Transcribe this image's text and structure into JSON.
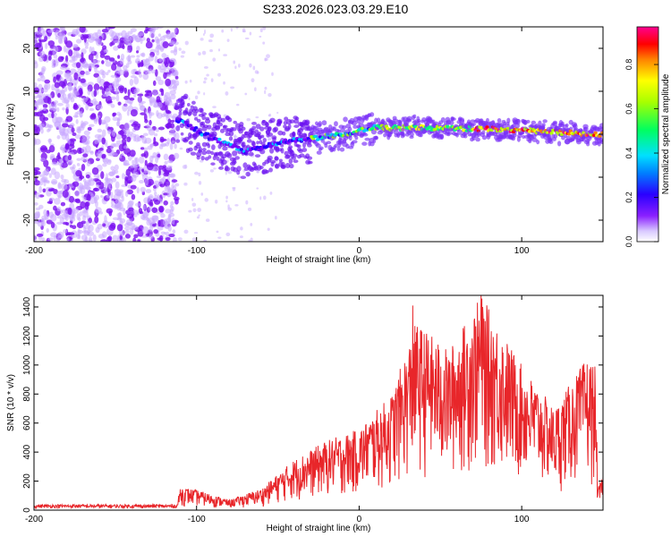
{
  "title": "S233.2026.023.03.29.E10",
  "chart_data": [
    {
      "type": "heatmap",
      "xlabel": "Height of straight line (km)",
      "ylabel": "Frequency (Hz)",
      "xlim": [
        -200,
        150
      ],
      "ylim": [
        -25,
        25
      ],
      "x_ticks": [
        -200,
        -100,
        0,
        100
      ],
      "y_ticks": [
        20,
        10,
        0,
        -10,
        -20
      ],
      "colorbar": {
        "label": "Normalized spectral amplitude",
        "ticks": [
          0.0,
          0.2,
          0.4,
          0.6,
          0.8
        ],
        "range": [
          0,
          0.97
        ],
        "colors": [
          "#ffffff",
          "#c8b0ff",
          "#7a00ff",
          "#2000ff",
          "#00c8ff",
          "#00ff80",
          "#b0ff00",
          "#ffff00",
          "#ff8000",
          "#ff0000",
          "#ff0080"
        ]
      },
      "ridge": [
        {
          "x": -110,
          "y": 3
        },
        {
          "x": -90,
          "y": -1
        },
        {
          "x": -70,
          "y": -4
        },
        {
          "x": -50,
          "y": -2
        },
        {
          "x": -30,
          "y": -1
        },
        {
          "x": -10,
          "y": 0
        },
        {
          "x": 10,
          "y": 1.5
        },
        {
          "x": 50,
          "y": 1.5
        },
        {
          "x": 100,
          "y": 1
        },
        {
          "x": 140,
          "y": 0
        }
      ]
    },
    {
      "type": "line",
      "xlabel": "Height of straight line (km)",
      "ylabel": "SNR (10 * v/v)",
      "xlim": [
        -200,
        150
      ],
      "ylim": [
        0,
        1480
      ],
      "x_ticks": [
        -200,
        -100,
        0,
        100
      ],
      "y_ticks": [
        0,
        200,
        400,
        600,
        800,
        1000,
        1200,
        1400
      ],
      "color": "#e8262a",
      "envelope": [
        {
          "x": -200,
          "y": 40
        },
        {
          "x": -150,
          "y": 40
        },
        {
          "x": -112,
          "y": 40
        },
        {
          "x": -110,
          "y": 160
        },
        {
          "x": -100,
          "y": 140
        },
        {
          "x": -80,
          "y": 70
        },
        {
          "x": -60,
          "y": 150
        },
        {
          "x": -40,
          "y": 350
        },
        {
          "x": -20,
          "y": 480
        },
        {
          "x": 0,
          "y": 560
        },
        {
          "x": 20,
          "y": 800
        },
        {
          "x": 35,
          "y": 1300
        },
        {
          "x": 55,
          "y": 1100
        },
        {
          "x": 75,
          "y": 1480
        },
        {
          "x": 100,
          "y": 1000
        },
        {
          "x": 120,
          "y": 700
        },
        {
          "x": 140,
          "y": 1050
        },
        {
          "x": 145,
          "y": 1000
        },
        {
          "x": 147,
          "y": 150
        },
        {
          "x": 150,
          "y": 250
        }
      ],
      "peaks": [
        {
          "x": 33,
          "y": 1410
        },
        {
          "x": 75,
          "y": 1480
        }
      ]
    }
  ]
}
